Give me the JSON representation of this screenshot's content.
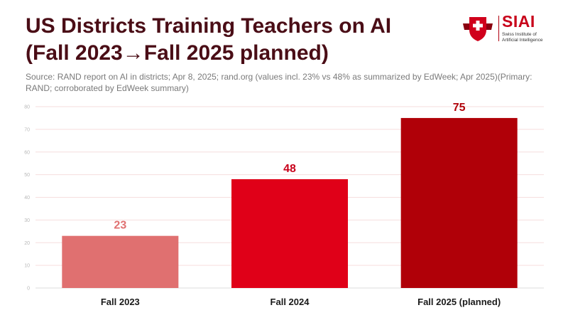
{
  "header": {
    "title_line1": "US Districts Training Teachers on AI",
    "title_line2": "(Fall 2023→Fall 2025 planned)",
    "subtitle": "Source: RAND report on AI in districts; Apr 8, 2025; rand.org (values incl. 23% vs 48% as summarized by EdWeek; Apr 2025)(Primary: RAND; corroborated by EdWeek summary)"
  },
  "logo": {
    "name": "SIAI",
    "sub_line1": "Swiss Institute of",
    "sub_line2": "Artificial Intelligence"
  },
  "colors": {
    "title": "#4a0d16",
    "bars": [
      "#e07070",
      "#e00018",
      "#b00008"
    ],
    "value_labels": [
      "#e07070",
      "#c8001a",
      "#b00008"
    ],
    "grid": "#f6dede"
  },
  "chart_data": {
    "type": "bar",
    "categories": [
      "Fall 2023",
      "Fall 2024",
      "Fall 2025 (planned)"
    ],
    "values": [
      23,
      48,
      75
    ],
    "ylim": [
      0,
      80
    ],
    "yticks": [
      0,
      10,
      20,
      30,
      40,
      50,
      60,
      70,
      80
    ],
    "grid": true,
    "xlabel": "",
    "ylabel": ""
  }
}
